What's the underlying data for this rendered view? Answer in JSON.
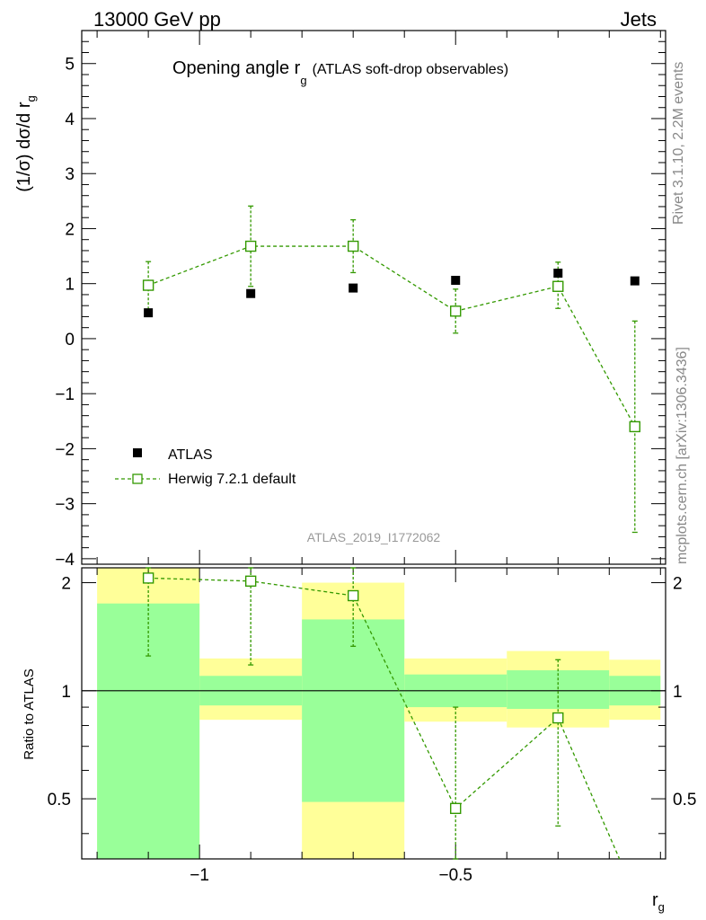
{
  "header": {
    "left": "13000 GeV pp",
    "right": "Jets"
  },
  "side_labels": {
    "version": "Rivet 3.1.10,  2.2M events",
    "source": "mcplots.cern.ch [arXiv:1306.3436]"
  },
  "chart_data": [
    {
      "type": "scatter",
      "title": "Opening angle r",
      "title_subscript": "g",
      "title_suffix": "(ATLAS soft-drop observables)",
      "ylabel": "(1/σ) dσ/d r",
      "ylabel_subscript": "g",
      "ylim": [
        -4.1,
        5.6
      ],
      "xlim": [
        -1.23,
        -0.09
      ],
      "yticks": [
        -4,
        -3,
        -2,
        -1,
        0,
        1,
        2,
        3,
        4,
        5
      ],
      "ytick_labels": [
        "−4",
        "−3",
        "−2",
        "−1",
        "0",
        "1",
        "2",
        "3",
        "4",
        "5"
      ],
      "analysis_label": "ATLAS_2019_I1772062",
      "legend": [
        "ATLAS",
        "Herwig 7.2.1 default"
      ],
      "series": [
        {
          "name": "ATLAS",
          "color": "#000000",
          "x": [
            -1.1,
            -0.9,
            -0.7,
            -0.5,
            -0.3,
            -0.15
          ],
          "y": [
            0.47,
            0.82,
            0.92,
            1.06,
            1.19,
            1.05
          ]
        },
        {
          "name": "Herwig 7.2.1 default",
          "color": "#339900",
          "x": [
            -1.1,
            -0.9,
            -0.7,
            -0.5,
            -0.3,
            -0.15
          ],
          "y": [
            0.97,
            1.68,
            1.68,
            0.5,
            0.95,
            -1.6
          ],
          "err_low": [
            0.55,
            0.73,
            0.48,
            0.4,
            0.4,
            1.92
          ],
          "err_high": [
            0.43,
            0.73,
            0.48,
            0.4,
            0.44,
            1.92
          ]
        }
      ]
    },
    {
      "type": "ratio",
      "ylabel": "Ratio to ATLAS",
      "xlabel": "r",
      "xlabel_subscript": "g",
      "ylim": [
        0.34,
        2.2
      ],
      "xlim": [
        -1.23,
        -0.09
      ],
      "yticks": [
        0.5,
        1,
        2
      ],
      "ytick_labels": [
        "0.5",
        "1",
        "2"
      ],
      "xticks": [
        -1,
        -0.5
      ],
      "xtick_labels": [
        "−1",
        "−0.5"
      ],
      "bins": [
        [
          -1.2,
          -1.0
        ],
        [
          -1.0,
          -0.8
        ],
        [
          -0.8,
          -0.6
        ],
        [
          -0.6,
          -0.4
        ],
        [
          -0.4,
          -0.2
        ],
        [
          -0.2,
          -0.1
        ]
      ],
      "band_inner": [
        [
          0.34,
          1.75
        ],
        [
          0.91,
          1.1
        ],
        [
          0.49,
          1.58
        ],
        [
          0.9,
          1.11
        ],
        [
          0.89,
          1.14
        ],
        [
          0.91,
          1.1
        ]
      ],
      "band_outer": [
        [
          0.34,
          2.2
        ],
        [
          0.83,
          1.23
        ],
        [
          0.34,
          2.0
        ],
        [
          0.82,
          1.23
        ],
        [
          0.79,
          1.29
        ],
        [
          0.83,
          1.22
        ]
      ],
      "colors": {
        "inner": "#99ff99",
        "outer": "#ffff99"
      },
      "series": [
        {
          "name": "Herwig 7.2.1 default",
          "color": "#339900",
          "x": [
            -1.1,
            -0.9,
            -0.7,
            -0.5,
            -0.3
          ],
          "y": [
            2.06,
            2.02,
            1.84,
            0.47,
            0.84
          ],
          "err_low": [
            0.81,
            0.84,
            0.51,
            0.34,
            0.42
          ],
          "err_high": [
            0.94,
            0.9,
            0.5,
            0.43,
            0.38
          ]
        }
      ],
      "offscale_segment": {
        "from": [
          -0.3,
          0.84
        ],
        "to": [
          -0.18,
          0.34
        ]
      }
    }
  ]
}
